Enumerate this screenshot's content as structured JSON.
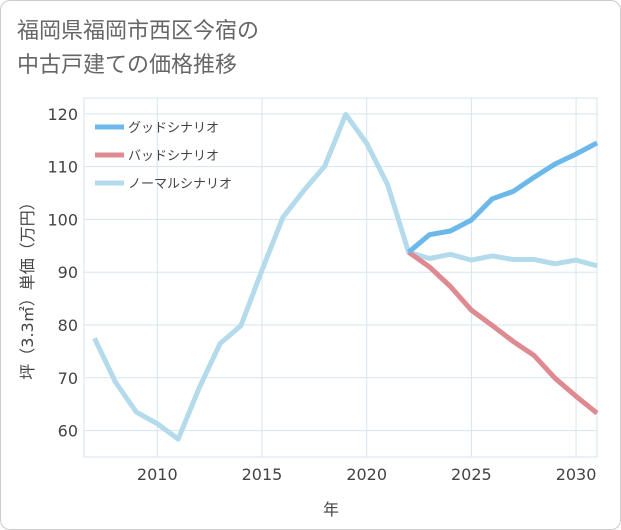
{
  "title": {
    "line1": "福岡県福岡市西区今宿の",
    "line2": "中古戸建ての価格推移"
  },
  "chart_data": {
    "type": "line",
    "xlabel": "年",
    "ylabel": "坪（3.3㎡）単価（万円）",
    "xlim": [
      2006.5,
      2031
    ],
    "ylim": [
      55,
      123
    ],
    "x_ticks": [
      2010,
      2015,
      2020,
      2025,
      2030
    ],
    "y_ticks": [
      60,
      70,
      80,
      90,
      100,
      110,
      120
    ],
    "grid": true,
    "legend_position": "top-left",
    "series": [
      {
        "name": "グッドシナリオ",
        "color": "#6cb8ea",
        "x": [
          2022,
          2023,
          2024,
          2025,
          2026,
          2027,
          2028,
          2029,
          2030,
          2031
        ],
        "y": [
          93.8,
          97.1,
          97.8,
          99.9,
          103.9,
          105.3,
          108,
          110.5,
          112.4,
          114.5
        ]
      },
      {
        "name": "バッドシナリオ",
        "color": "#de8a90",
        "x": [
          2022,
          2023,
          2024,
          2025,
          2026,
          2027,
          2028,
          2029,
          2030,
          2031
        ],
        "y": [
          93.8,
          91,
          87.3,
          82.8,
          79.9,
          76.9,
          74.2,
          69.9,
          66.5,
          63.3
        ]
      },
      {
        "name": "ノーマルシナリオ",
        "color": "#b4dbeb",
        "x": [
          2007,
          2008,
          2009,
          2010,
          2011,
          2012,
          2013,
          2014,
          2015,
          2016,
          2017,
          2018,
          2019,
          2020,
          2021,
          2022,
          2023,
          2024,
          2025,
          2026,
          2027,
          2028,
          2029,
          2030,
          2031
        ],
        "y": [
          77.5,
          69.2,
          63.5,
          61.3,
          58.4,
          68.1,
          76.5,
          79.9,
          90.4,
          100.4,
          105.5,
          110.1,
          119.9,
          114.4,
          106.6,
          93.8,
          92.6,
          93.4,
          92.3,
          93.1,
          92.4,
          92.4,
          91.6,
          92.3,
          91.2
        ]
      }
    ]
  }
}
